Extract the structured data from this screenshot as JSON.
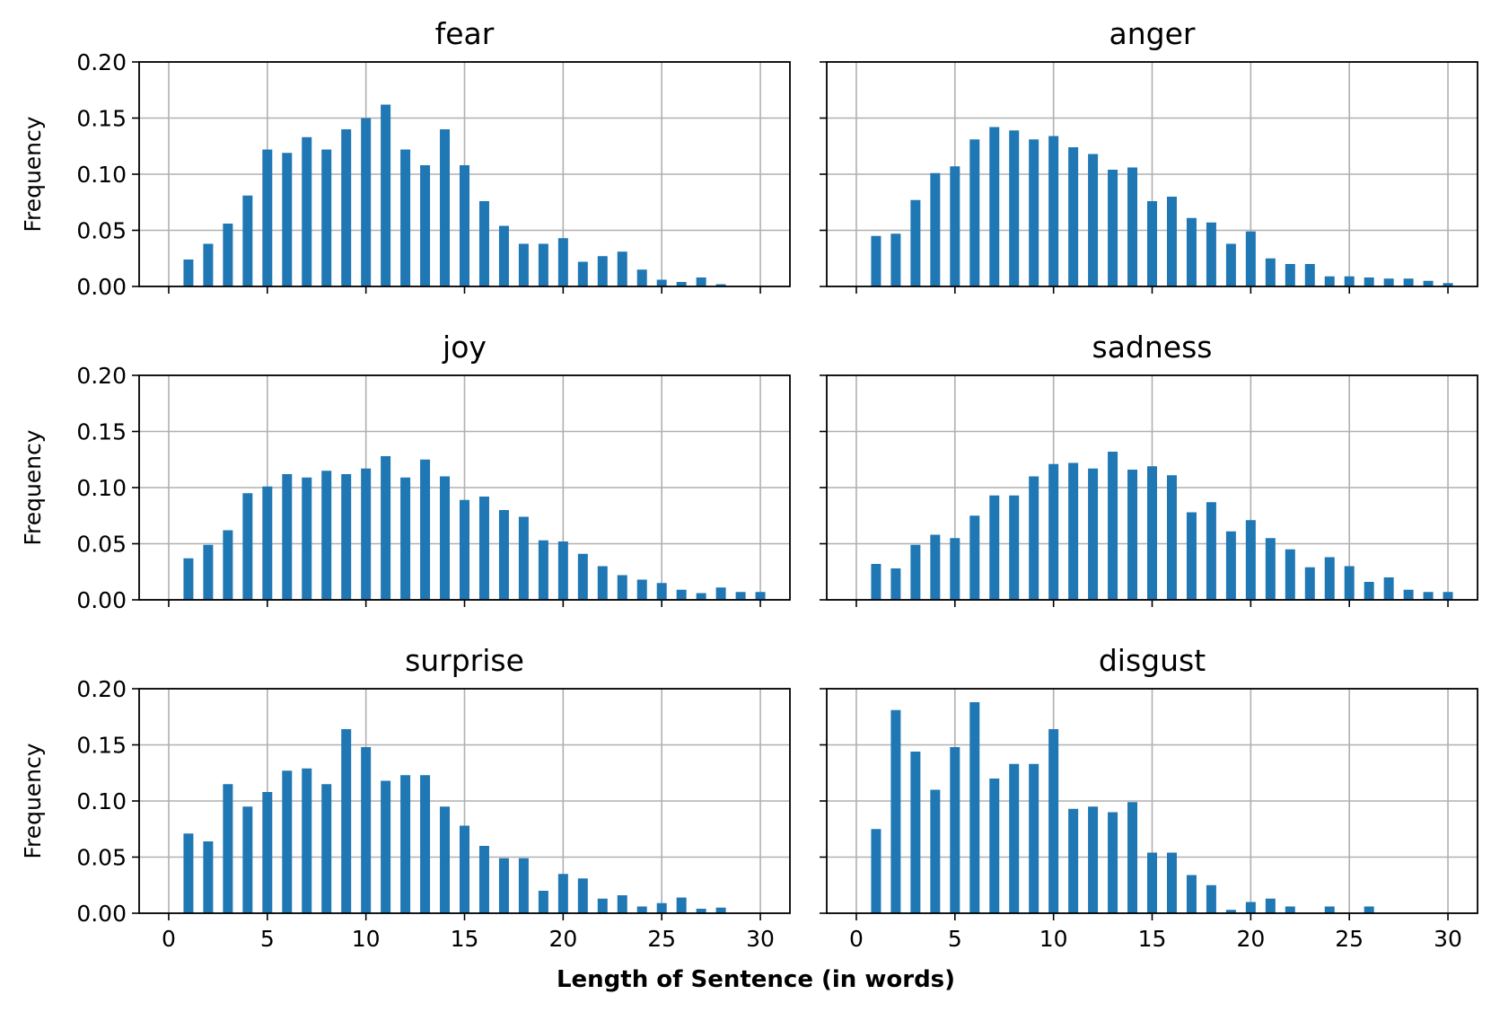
{
  "chart_data": {
    "type": "bar",
    "xlabel": "Length of Sentence (in words)",
    "ylabel": "Frequency",
    "xlim": [
      -1.5,
      31.5
    ],
    "ylim": [
      0,
      0.2
    ],
    "xticks": [
      0,
      5,
      10,
      15,
      20,
      25,
      30
    ],
    "yticks": [
      0,
      0.05,
      0.1,
      0.15,
      0.2
    ],
    "xtick_labels": [
      "0",
      "5",
      "10",
      "15",
      "20",
      "25",
      "30"
    ],
    "ytick_labels": [
      "0.00",
      "0.05",
      "0.10",
      "0.15",
      "0.20"
    ],
    "grid": true,
    "bar_color": "#1f77b4",
    "x": [
      1,
      2,
      3,
      4,
      5,
      6,
      7,
      8,
      9,
      10,
      11,
      12,
      13,
      14,
      15,
      16,
      17,
      18,
      19,
      20,
      21,
      22,
      23,
      24,
      25,
      26,
      27,
      28,
      29,
      30
    ],
    "panels": [
      {
        "title": "fear",
        "values": [
          0.024,
          0.038,
          0.056,
          0.081,
          0.122,
          0.119,
          0.133,
          0.122,
          0.14,
          0.15,
          0.162,
          0.122,
          0.108,
          0.14,
          0.108,
          0.076,
          0.054,
          0.038,
          0.038,
          0.043,
          0.022,
          0.027,
          0.031,
          0.015,
          0.006,
          0.004,
          0.008,
          0.002,
          0,
          0
        ]
      },
      {
        "title": "anger",
        "values": [
          0.045,
          0.047,
          0.077,
          0.101,
          0.107,
          0.131,
          0.142,
          0.139,
          0.131,
          0.134,
          0.124,
          0.118,
          0.104,
          0.106,
          0.076,
          0.08,
          0.061,
          0.057,
          0.038,
          0.049,
          0.025,
          0.02,
          0.02,
          0.009,
          0.009,
          0.008,
          0.007,
          0.007,
          0.005,
          0.003
        ]
      },
      {
        "title": "joy",
        "values": [
          0.037,
          0.049,
          0.062,
          0.095,
          0.101,
          0.112,
          0.109,
          0.115,
          0.112,
          0.117,
          0.128,
          0.109,
          0.125,
          0.11,
          0.089,
          0.092,
          0.08,
          0.074,
          0.053,
          0.052,
          0.041,
          0.03,
          0.022,
          0.018,
          0.015,
          0.009,
          0.006,
          0.011,
          0.007,
          0.007
        ]
      },
      {
        "title": "sadness",
        "values": [
          0.032,
          0.028,
          0.049,
          0.058,
          0.055,
          0.075,
          0.093,
          0.093,
          0.11,
          0.121,
          0.122,
          0.117,
          0.132,
          0.116,
          0.119,
          0.111,
          0.078,
          0.087,
          0.061,
          0.071,
          0.055,
          0.045,
          0.029,
          0.038,
          0.03,
          0.016,
          0.02,
          0.009,
          0.007,
          0.007
        ]
      },
      {
        "title": "surprise",
        "values": [
          0.071,
          0.064,
          0.115,
          0.095,
          0.108,
          0.127,
          0.129,
          0.115,
          0.164,
          0.148,
          0.118,
          0.123,
          0.123,
          0.095,
          0.078,
          0.06,
          0.049,
          0.049,
          0.02,
          0.035,
          0.031,
          0.013,
          0.016,
          0.006,
          0.009,
          0.014,
          0.004,
          0.005,
          0,
          0
        ]
      },
      {
        "title": "disgust",
        "values": [
          0.075,
          0.181,
          0.144,
          0.11,
          0.148,
          0.188,
          0.12,
          0.133,
          0.133,
          0.164,
          0.093,
          0.095,
          0.09,
          0.099,
          0.054,
          0.054,
          0.034,
          0.025,
          0.003,
          0.01,
          0.013,
          0.006,
          0,
          0.006,
          0,
          0.006,
          0,
          0,
          0,
          0
        ]
      }
    ]
  }
}
